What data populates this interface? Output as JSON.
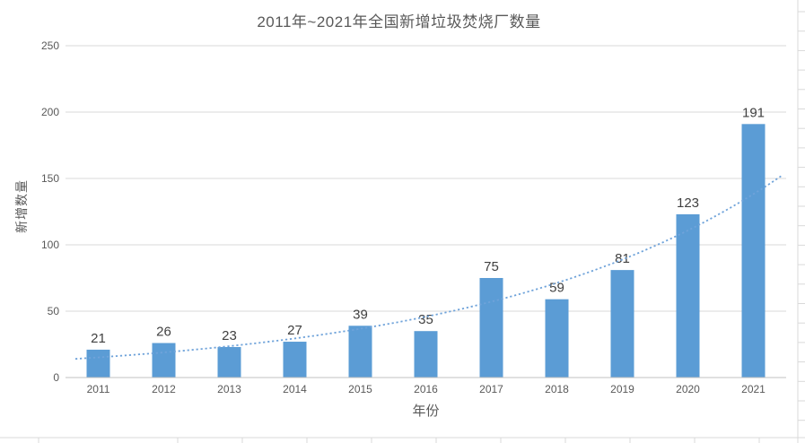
{
  "title": "2011年~2021年全国新增垃圾焚烧厂数量",
  "chart_data": {
    "type": "bar",
    "title": "2011年~2021年全国新增垃圾焚烧厂数量",
    "categories": [
      "2011",
      "2012",
      "2013",
      "2014",
      "2015",
      "2016",
      "2017",
      "2018",
      "2019",
      "2020",
      "2021"
    ],
    "series": [
      {
        "name": "新增数量",
        "values": [
          21,
          26,
          23,
          27,
          39,
          35,
          75,
          59,
          81,
          123,
          191
        ]
      }
    ],
    "data_labels": [
      21,
      26,
      23,
      27,
      39,
      35,
      75,
      59,
      81,
      123,
      191
    ],
    "trendline": {
      "shape": "exponential",
      "style": "dotted"
    },
    "xlabel": "年份",
    "ylabel": "新增数量",
    "ylim": [
      0,
      250
    ],
    "yticks": [
      0,
      50,
      100,
      150,
      200,
      250
    ],
    "grid": true,
    "legend": "none"
  },
  "colors": {
    "bar": "#5b9cd5",
    "trendline": "#6fa3da",
    "gridline": "#d9d9d9",
    "axis_line": "#c0c0c0",
    "axis_text": "#595959",
    "data_label_text": "#404040",
    "title_text": "#595959",
    "excel_grid": "#d9d9d9"
  }
}
